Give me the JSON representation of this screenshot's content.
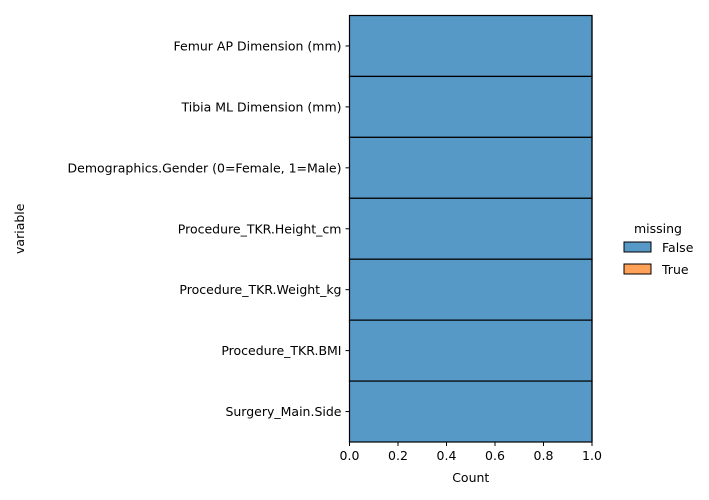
{
  "chart_data": {
    "type": "bar",
    "orientation": "horizontal",
    "stacked": true,
    "categories": [
      "Femur AP Dimension (mm)",
      "Tibia ML Dimension (mm)",
      "Demographics.Gender (0=Female, 1=Male)",
      "Procedure_TKR.Height_cm",
      "Procedure_TKR.Weight_kg",
      "Procedure_TKR.BMI",
      "Surgery_Main.Side"
    ],
    "series": [
      {
        "name": "False",
        "values": [
          1,
          1,
          1,
          1,
          1,
          1,
          1
        ],
        "color": "#5698c6"
      },
      {
        "name": "True",
        "values": [
          0,
          0,
          0,
          0,
          0,
          0,
          0
        ],
        "color": "#ffa157"
      }
    ],
    "xlabel": "Count",
    "ylabel": "variable",
    "xlim": [
      0,
      1
    ],
    "xticks": [
      "0.0",
      "0.2",
      "0.4",
      "0.6",
      "0.8",
      "1.0"
    ],
    "legend_title": "missing",
    "legend_position": "right",
    "grid": false
  }
}
